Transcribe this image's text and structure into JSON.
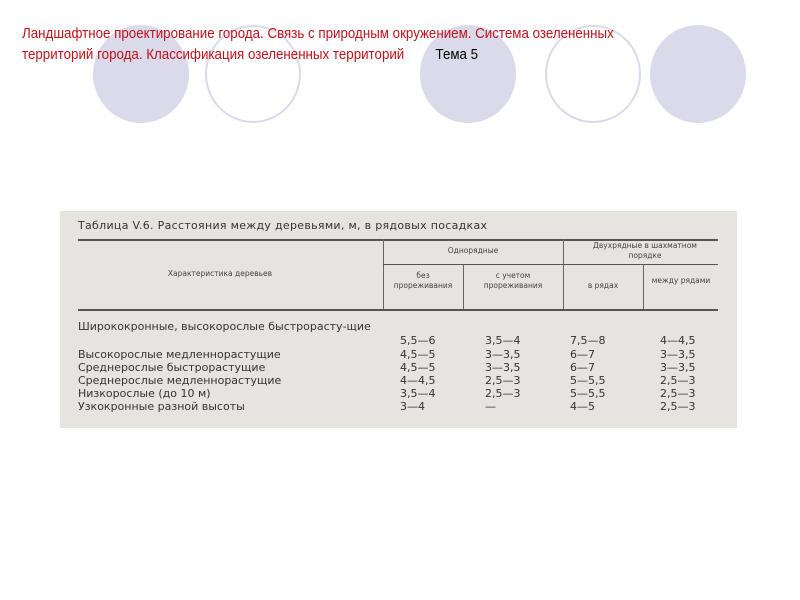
{
  "slide": {
    "title": "Ландшафтное проектирование города. Связь с природным окружением.  Система озелененных территорий города. Классификация озелененных территорий",
    "topic": "Тема 5",
    "title_color": "#c0121a",
    "decor_color": "#dadaea"
  },
  "table": {
    "caption": "Таблица V.6. Расстояния между деревьями, м, в рядовых посадках",
    "headers": {
      "characteristic": "Характеристика деревьев",
      "single_row": "Однорядные",
      "double_row": "Двухрядные в шахматном порядке",
      "no_thinning": "без прореживания",
      "with_thinning": "с учетом прореживания",
      "in_rows": "в рядах",
      "between_rows": "между рядами"
    },
    "rows": [
      {
        "name": "Ширококронные, высокорослые быстрорасту-щие",
        "v": [
          "5,5—6",
          "3,5—4",
          "7,5—8",
          "4—4,5"
        ]
      },
      {
        "name": "Высокорослые медленнорастущие",
        "v": [
          "4,5—5",
          "3—3,5",
          "6—7",
          "3—3,5"
        ]
      },
      {
        "name": "Среднерослые быстрорастущие",
        "v": [
          "4,5—5",
          "3—3,5",
          "6—7",
          "3—3,5"
        ]
      },
      {
        "name": "Среднерослые медленнорастущие",
        "v": [
          "4—4,5",
          "2,5—3",
          "5—5,5",
          "2,5—3"
        ]
      },
      {
        "name": "Низкорослые (до 10 м)",
        "v": [
          "3,5—4",
          "2,5—3",
          "5—5,5",
          "2,5—3"
        ]
      },
      {
        "name": "Узкокронные разной высоты",
        "v": [
          "3—4",
          "—",
          "4—5",
          "2,5—3"
        ]
      }
    ]
  }
}
